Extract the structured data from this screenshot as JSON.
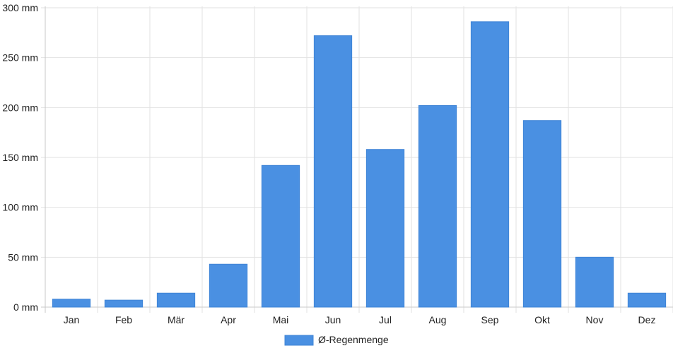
{
  "chart_data": {
    "type": "bar",
    "categories": [
      "Jan",
      "Feb",
      "Mär",
      "Apr",
      "Mai",
      "Jun",
      "Jul",
      "Aug",
      "Sep",
      "Okt",
      "Nov",
      "Dez"
    ],
    "series": [
      {
        "name": "Ø-Regenmenge",
        "values": [
          8,
          7,
          14,
          43,
          142,
          272,
          158,
          202,
          286,
          187,
          50,
          14
        ],
        "color": "#4a90e2"
      }
    ],
    "y_ticks": [
      "0 mm",
      "50 mm",
      "100 mm",
      "150 mm",
      "200 mm",
      "250 mm",
      "300 mm"
    ],
    "ylim": [
      0,
      300
    ],
    "unit": "mm",
    "grid": true,
    "legend_position": "bottom-center"
  }
}
